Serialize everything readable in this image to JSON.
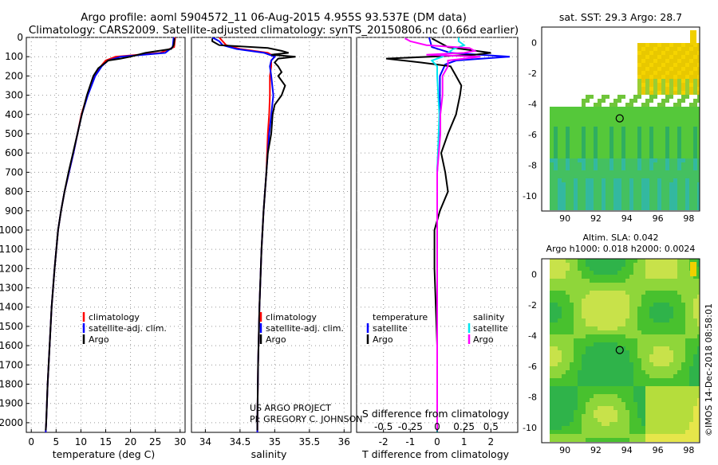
{
  "header": {
    "title_line1": "Argo profile: aoml 5904572_11 06-Aug-2015 4.955S 93.537E (DM data)",
    "title_line2": "Climatology: CARS2009. Satellite-adjusted climatology: synTS_20150806.nc (0.66d earlier)"
  },
  "credits": {
    "project": "US ARGO PROJECT",
    "pi": "PI: GREGORY C. JOHNSON",
    "watermark": "©IMOS 14-Dec-2018 08:58:01"
  },
  "colors": {
    "climatology": "#ff0000",
    "satellite": "#0000ff",
    "argo": "#000000",
    "sal_satellite": "#00e5ee",
    "sal_argo": "#ff00ff"
  },
  "chart_data": [
    {
      "type": "line",
      "id": "temperature",
      "xlabel": "temperature (deg C)",
      "ylim": [
        2050,
        0
      ],
      "xlim": [
        -1,
        31
      ],
      "xticks": [
        "0",
        "5",
        "10",
        "15",
        "20",
        "25",
        "30"
      ],
      "xtick_values": [
        0,
        5,
        10,
        15,
        20,
        25,
        30
      ],
      "yticks": [
        "0",
        "100",
        "200",
        "300",
        "400",
        "500",
        "600",
        "700",
        "800",
        "900",
        "1000",
        "1100",
        "1200",
        "1300",
        "1400",
        "1500",
        "1600",
        "1700",
        "1800",
        "1900",
        "2000"
      ],
      "ytick_values": [
        0,
        100,
        200,
        300,
        400,
        500,
        600,
        700,
        800,
        900,
        1000,
        1100,
        1200,
        1300,
        1400,
        1500,
        1600,
        1700,
        1800,
        1900,
        2000
      ],
      "legend": [
        "climatology",
        "satellite-adj. clim.",
        "Argo"
      ],
      "series": [
        {
          "name": "climatology",
          "color": "#ff0000",
          "depth": [
            0,
            50,
            80,
            100,
            120,
            150,
            200,
            300,
            400,
            500,
            600,
            700,
            800,
            900,
            1000,
            1200,
            1400,
            1600,
            1800,
            2000,
            2050
          ],
          "values": [
            29,
            28.8,
            26,
            17,
            15,
            14,
            12.8,
            11.3,
            10.1,
            9.3,
            8.5,
            7.6,
            6.7,
            6.0,
            5.4,
            4.7,
            4.1,
            3.7,
            3.3,
            3.0,
            2.9
          ]
        },
        {
          "name": "satellite-adj. clim.",
          "color": "#0000ff",
          "depth": [
            0,
            50,
            80,
            100,
            120,
            150,
            200,
            300,
            400,
            500,
            600,
            700,
            800,
            900,
            1000,
            1200,
            1400,
            1600,
            1800,
            2000,
            2050
          ],
          "values": [
            28.7,
            28.5,
            27,
            18,
            15.5,
            14.2,
            12.9,
            11.4,
            10.2,
            9.3,
            8.5,
            7.6,
            6.7,
            6.0,
            5.4,
            4.7,
            4.1,
            3.7,
            3.3,
            3.0,
            2.9
          ]
        },
        {
          "name": "Argo",
          "color": "#000000",
          "depth": [
            5,
            40,
            60,
            80,
            100,
            110,
            120,
            140,
            160,
            200,
            300,
            400,
            500,
            600,
            700,
            800,
            900,
            1000,
            1200,
            1400,
            1600,
            1800,
            2000,
            2040
          ],
          "values": [
            28.9,
            28.7,
            28.2,
            23,
            20,
            18,
            15.5,
            14.5,
            13.5,
            12.5,
            11.2,
            10.2,
            9.3,
            8.4,
            7.5,
            6.7,
            6.0,
            5.4,
            4.7,
            4.1,
            3.7,
            3.3,
            3.0,
            2.9
          ]
        }
      ]
    },
    {
      "type": "line",
      "id": "salinity",
      "xlabel": "salinity",
      "ylim": [
        2050,
        0
      ],
      "xlim": [
        33.8,
        36.1
      ],
      "xticks": [
        "34",
        "34.5",
        "35",
        "35.5",
        "36"
      ],
      "xtick_values": [
        34,
        34.5,
        35,
        35.5,
        36
      ],
      "legend": [
        "climatology",
        "satellite-adj. clim.",
        "Argo"
      ],
      "series": [
        {
          "name": "climatology",
          "color": "#ff0000",
          "depth": [
            0,
            20,
            40,
            60,
            80,
            100,
            120,
            150,
            200,
            300,
            400,
            500,
            700,
            900,
            1100,
            1400,
            1700,
            2000,
            2050
          ],
          "values": [
            34.2,
            34.25,
            34.3,
            34.5,
            34.9,
            35.0,
            34.95,
            34.95,
            34.93,
            34.93,
            34.92,
            34.9,
            34.88,
            34.84,
            34.81,
            34.78,
            34.76,
            34.75,
            34.75
          ]
        },
        {
          "name": "satellite-adj. clim.",
          "color": "#0000ff",
          "depth": [
            0,
            20,
            40,
            60,
            80,
            100,
            120,
            150,
            200,
            300,
            400,
            500,
            700,
            900,
            1100,
            1400,
            1700,
            2000,
            2050
          ],
          "values": [
            34.1,
            34.2,
            34.25,
            34.45,
            34.85,
            35.0,
            34.95,
            34.93,
            34.95,
            34.98,
            34.95,
            34.92,
            34.88,
            34.84,
            34.81,
            34.78,
            34.76,
            34.75,
            34.75
          ]
        },
        {
          "name": "Argo",
          "color": "#000000",
          "depth": [
            5,
            20,
            40,
            55,
            70,
            80,
            90,
            100,
            110,
            130,
            150,
            180,
            200,
            250,
            300,
            350,
            400,
            500,
            600,
            700,
            900,
            1100,
            1400,
            1700,
            2000,
            2040
          ],
          "values": [
            34.1,
            34.1,
            34.2,
            34.9,
            35.1,
            35.2,
            34.95,
            35.3,
            35.05,
            35.0,
            35.05,
            35.1,
            35.05,
            35.15,
            35.1,
            35.0,
            34.97,
            34.95,
            34.9,
            34.88,
            34.84,
            34.81,
            34.78,
            34.76,
            34.75,
            34.75
          ]
        }
      ]
    },
    {
      "type": "line",
      "id": "difference",
      "xlabel": "T difference from climatology",
      "xlabel_top": "S difference from climatology",
      "ylim": [
        2050,
        0
      ],
      "xlim": [
        -3,
        3
      ],
      "xticks": [
        "-2",
        "-1",
        "0",
        "1",
        "2"
      ],
      "xtick_values": [
        -2,
        -1,
        0,
        1,
        2
      ],
      "xticks_top": [
        "-0.5",
        "-0.25",
        "0",
        "0.25",
        "0.5"
      ],
      "xtick_top_values": [
        -0.5,
        -0.25,
        0,
        0.25,
        0.5
      ],
      "legend_t_title": "temperature",
      "legend_s_title": "salinity",
      "legend_t": [
        "satellite",
        "Argo"
      ],
      "legend_s": [
        "satellite",
        "Argo"
      ],
      "series": [
        {
          "name": "T satellite",
          "color": "#0000ff",
          "depth": [
            0,
            50,
            80,
            100,
            120,
            140,
            200,
            400,
            700,
            1000,
            1500,
            2000,
            2050
          ],
          "values": [
            -0.3,
            -0.2,
            0.5,
            2.7,
            0.7,
            0.3,
            0.1,
            0.1,
            0.0,
            0.0,
            0.0,
            0.0,
            0.0
          ]
        },
        {
          "name": "T Argo",
          "color": "#000000",
          "depth": [
            5,
            50,
            80,
            90,
            110,
            130,
            150,
            200,
            250,
            300,
            400,
            500,
            600,
            700,
            800,
            900,
            1000,
            1200,
            1400,
            1600,
            1800,
            2000,
            2040
          ],
          "values": [
            -0.2,
            0.4,
            2.0,
            1.4,
            -1.9,
            -0.6,
            0.5,
            0.7,
            0.9,
            0.85,
            0.7,
            0.4,
            0.15,
            0.3,
            0.4,
            0.1,
            -0.1,
            -0.1,
            -0.05,
            0.0,
            0.0,
            0.0,
            0.0
          ]
        },
        {
          "name": "S satellite",
          "color": "#00e5ee",
          "depth": [
            0,
            20,
            40,
            60,
            80,
            100,
            120,
            150,
            200,
            400,
            700,
            1000,
            1500,
            2000,
            2050
          ],
          "values": [
            0.2,
            0.2,
            0.25,
            0.15,
            0.1,
            0.05,
            -0.05,
            0.0,
            0.0,
            0.02,
            0.0,
            0.0,
            0.0,
            0.0,
            0.0
          ]
        },
        {
          "name": "S Argo",
          "color": "#ff00ff",
          "depth": [
            5,
            20,
            40,
            55,
            70,
            80,
            90,
            100,
            120,
            150,
            200,
            300,
            400,
            500,
            700,
            1000,
            1500,
            2000,
            2040
          ],
          "values": [
            -0.3,
            -0.25,
            -0.1,
            0.3,
            0.35,
            0.25,
            -0.1,
            0.4,
            0.1,
            0.1,
            0.05,
            0.05,
            0.03,
            0.03,
            0.0,
            0.0,
            0.0,
            0.0,
            0.0
          ]
        }
      ]
    },
    {
      "type": "heatmap",
      "id": "sst-map",
      "title": "sat. SST: 29.3 Argo: 28.7",
      "xticks": [
        "90",
        "92",
        "94",
        "96",
        "98"
      ],
      "xtick_values": [
        90,
        92,
        94,
        96,
        98
      ],
      "yticks": [
        "0",
        "-2",
        "-4",
        "-6",
        "-8",
        "-10"
      ],
      "ytick_values": [
        0,
        -2,
        -4,
        -6,
        -8,
        -10
      ],
      "xlim": [
        88.5,
        98.7
      ],
      "ylim": [
        -11,
        1
      ],
      "marker": {
        "lon": 93.537,
        "lat": -4.955
      }
    },
    {
      "type": "heatmap",
      "id": "sla-map",
      "title_line1": "Altim. SLA: 0.042",
      "title_line2": "Argo h1000: 0.018 h2000: 0.0024",
      "xticks": [
        "90",
        "92",
        "94",
        "96",
        "98"
      ],
      "xtick_values": [
        90,
        92,
        94,
        96,
        98
      ],
      "yticks": [
        "0",
        "-2",
        "-4",
        "-6",
        "-8",
        "-10"
      ],
      "ytick_values": [
        0,
        -2,
        -4,
        -6,
        -8,
        -10
      ],
      "xlim": [
        88.5,
        98.7
      ],
      "ylim": [
        -11,
        1
      ],
      "marker": {
        "lon": 93.537,
        "lat": -4.955
      }
    }
  ]
}
